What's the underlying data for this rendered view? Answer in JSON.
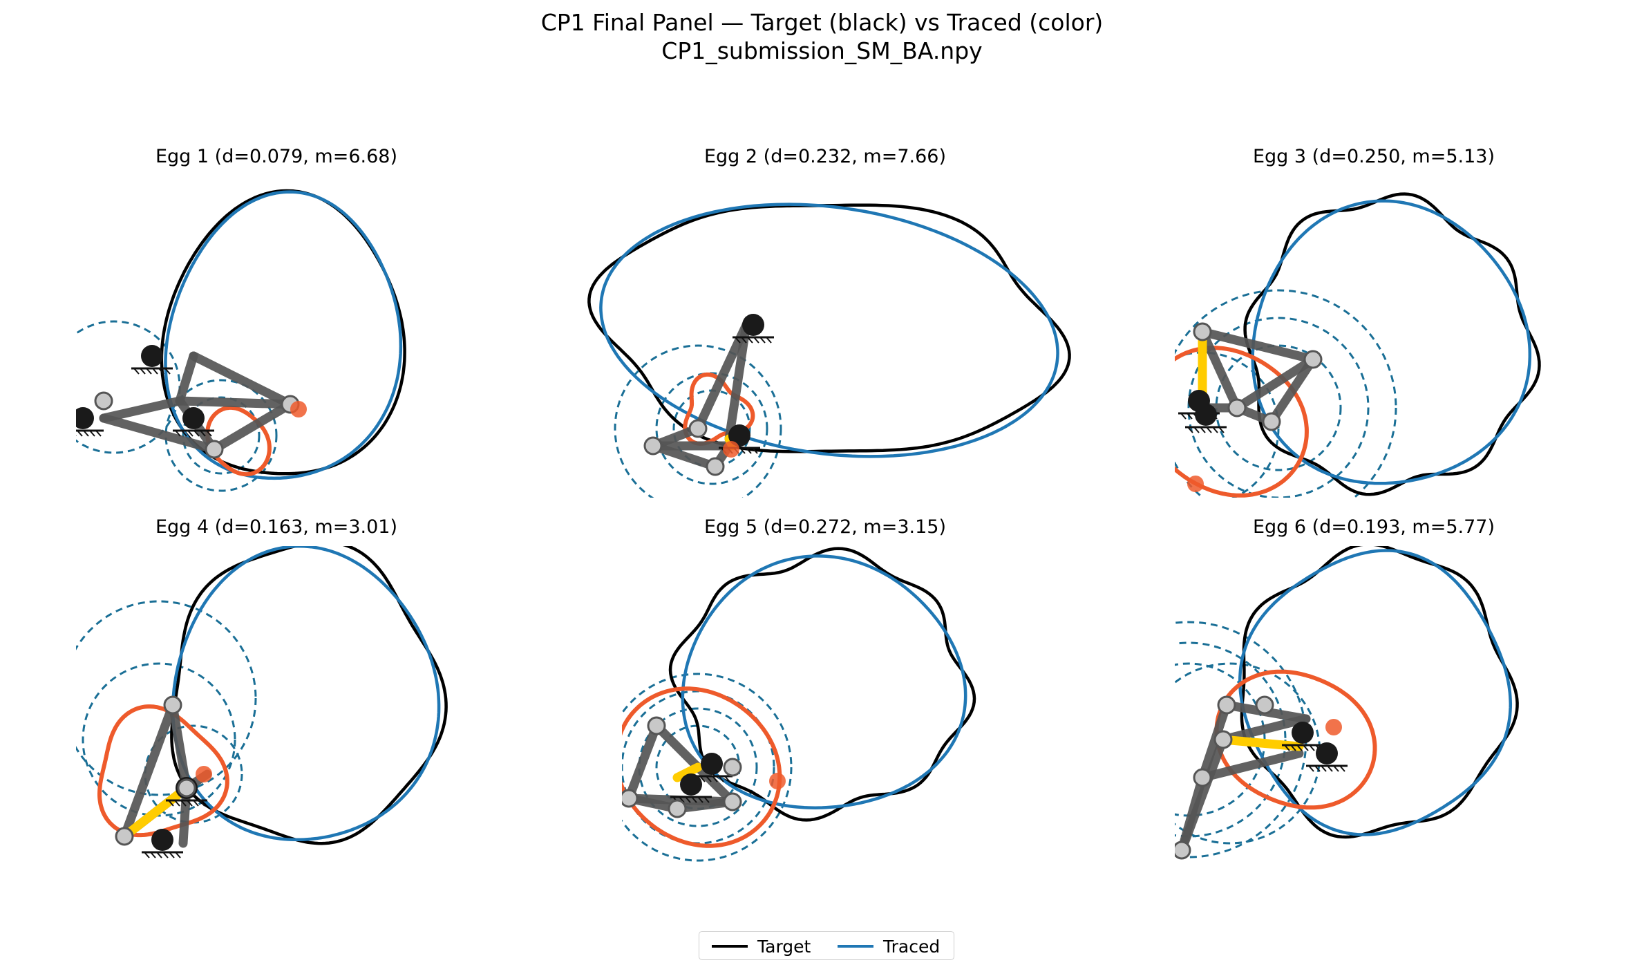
{
  "figure": {
    "title": "CP1 Final Panel — Target (black) vs Traced (color)",
    "subtitle": "CP1_submission_SM_BA.npy"
  },
  "legend": {
    "items": [
      {
        "label": "Target",
        "color": "#000000"
      },
      {
        "label": "Traced",
        "color": "#1f77b4"
      }
    ]
  },
  "colors": {
    "target": "#000000",
    "traced": "#1f77b4",
    "coupler_path": "#ee5a2b",
    "input_link": "#ffcc00",
    "links": "#555555",
    "reach_circles": "#1a6f96",
    "fixed_joint": "#1a1a1a",
    "moving_joint": "#c8c8c8"
  },
  "chart_data": [
    {
      "type": "line",
      "title": "Egg 1  (d=0.079, m=6.68)",
      "d": 0.079,
      "m": 6.68,
      "series": [
        "Target",
        "Traced"
      ]
    },
    {
      "type": "line",
      "title": "Egg 2  (d=0.232, m=7.66)",
      "d": 0.232,
      "m": 7.66,
      "series": [
        "Target",
        "Traced"
      ]
    },
    {
      "type": "line",
      "title": "Egg 3  (d=0.250, m=5.13)",
      "d": 0.25,
      "m": 5.13,
      "series": [
        "Target",
        "Traced"
      ]
    },
    {
      "type": "line",
      "title": "Egg 4  (d=0.163, m=3.01)",
      "d": 0.163,
      "m": 3.01,
      "series": [
        "Target",
        "Traced"
      ]
    },
    {
      "type": "line",
      "title": "Egg 5  (d=0.272, m=3.15)",
      "d": 0.272,
      "m": 3.15,
      "series": [
        "Target",
        "Traced"
      ]
    },
    {
      "type": "line",
      "title": "Egg 6  (d=0.193, m=5.77)",
      "d": 0.193,
      "m": 5.77,
      "series": [
        "Target",
        "Traced"
      ]
    }
  ]
}
